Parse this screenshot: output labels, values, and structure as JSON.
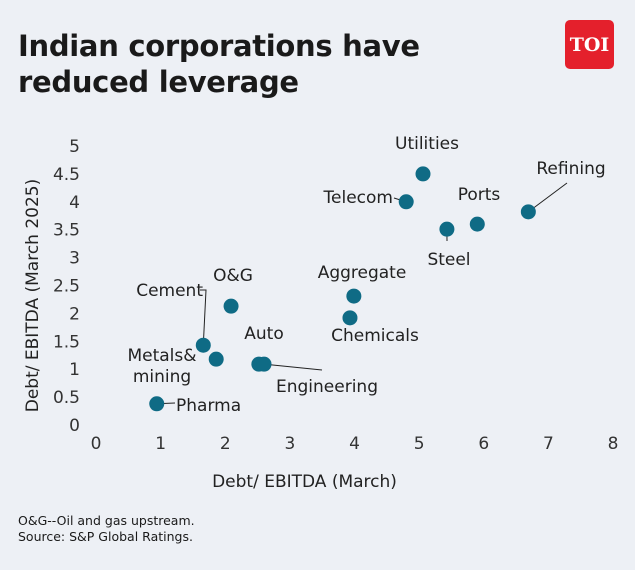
{
  "title_lines": [
    "Indian corporations have",
    "reduced leverage"
  ],
  "logo_text": "TOI",
  "footnotes": [
    "O&G--Oil and gas upstream.",
    "Source: S&P Global Ratings."
  ],
  "colors": {
    "point": "#0f6b85",
    "logo": "#e4202c",
    "background": "#edf0f5"
  },
  "chart_data": {
    "type": "scatter",
    "xlabel": "Debt/ EBITDA (March)",
    "ylabel": "Debt/ EBITDA (March 2025)",
    "xlim": [
      0,
      8
    ],
    "ylim": [
      0,
      5
    ],
    "xticks": [
      "0",
      "1",
      "2",
      "3",
      "4",
      "5",
      "6",
      "7",
      "8"
    ],
    "yticks": [
      "0",
      "0.5",
      "1",
      "1.5",
      "2",
      "2.5",
      "3",
      "3.5",
      "4",
      "4.5",
      "5"
    ],
    "grid": false,
    "points": [
      {
        "label": "Pharma",
        "x": 0.94,
        "y": 0.38
      },
      {
        "label": "Metals& mining",
        "x": 1.86,
        "y": 1.18
      },
      {
        "label": "Cement",
        "x": 1.66,
        "y": 1.43
      },
      {
        "label": "O&G",
        "x": 2.09,
        "y": 2.13
      },
      {
        "label": "Auto",
        "x": 2.52,
        "y": 1.09
      },
      {
        "label": "Engineering",
        "x": 2.6,
        "y": 1.09
      },
      {
        "label": "Chemicals",
        "x": 3.93,
        "y": 1.92
      },
      {
        "label": "Aggregate",
        "x": 3.99,
        "y": 2.31
      },
      {
        "label": "Telecom",
        "x": 4.8,
        "y": 4.0
      },
      {
        "label": "Utilities",
        "x": 5.06,
        "y": 4.5
      },
      {
        "label": "Steel",
        "x": 5.43,
        "y": 3.51
      },
      {
        "label": "Ports",
        "x": 5.9,
        "y": 3.6
      },
      {
        "label": "Refining",
        "x": 6.69,
        "y": 3.82
      }
    ]
  }
}
